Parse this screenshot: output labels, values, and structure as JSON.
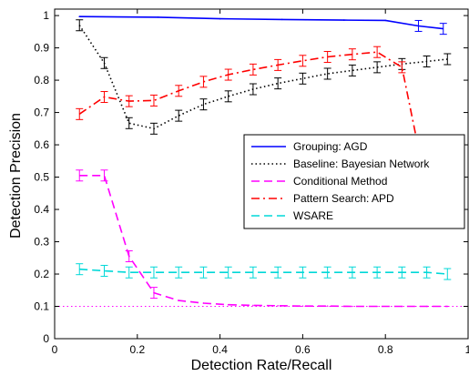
{
  "chart_data": {
    "type": "line",
    "title": "",
    "xlabel": "Detection Rate/Recall",
    "ylabel": "Detection Precision",
    "xlim": [
      0,
      1
    ],
    "ylim": [
      0,
      1.02
    ],
    "xticks": [
      "0",
      "0.2",
      "0.4",
      "0.6",
      "0.8",
      "1"
    ],
    "yticks": [
      "0",
      "0.1",
      "0.2",
      "0.3",
      "0.4",
      "0.5",
      "0.6",
      "0.7",
      "0.8",
      "0.9",
      "1"
    ],
    "grid": false,
    "legend_position": "right",
    "series": [
      {
        "name": "Grouping: AGD",
        "color": "#0000ff",
        "dash": "solid",
        "x": [
          0.06,
          0.25,
          0.4,
          0.55,
          0.7,
          0.8,
          0.88,
          0.94
        ],
        "y": [
          0.997,
          0.995,
          0.99,
          0.988,
          0.986,
          0.985,
          0.968,
          0.959
        ],
        "errorbars": [
          false,
          false,
          false,
          false,
          false,
          false,
          true,
          true
        ]
      },
      {
        "name": "Baseline: Bayesian Network",
        "color": "#000000",
        "dash": "dotted",
        "x": [
          0.06,
          0.12,
          0.18,
          0.24,
          0.3,
          0.36,
          0.42,
          0.48,
          0.54,
          0.6,
          0.66,
          0.72,
          0.78,
          0.84,
          0.9,
          0.95
        ],
        "y": [
          0.97,
          0.853,
          0.667,
          0.65,
          0.69,
          0.725,
          0.75,
          0.772,
          0.79,
          0.805,
          0.82,
          0.83,
          0.84,
          0.85,
          0.858,
          0.865
        ],
        "errorbars": [
          true,
          true,
          true,
          true,
          true,
          true,
          true,
          true,
          true,
          true,
          true,
          true,
          true,
          true,
          true,
          true
        ]
      },
      {
        "name": "Conditional Method",
        "color": "#ff00ff",
        "dash": "dashed",
        "x": [
          0.06,
          0.12,
          0.18,
          0.24,
          0.3,
          0.36,
          0.42,
          0.48,
          0.54,
          0.6,
          0.66,
          0.72,
          0.78,
          0.84,
          0.9,
          0.95
        ],
        "y": [
          0.505,
          0.505,
          0.255,
          0.142,
          0.118,
          0.11,
          0.105,
          0.103,
          0.102,
          0.101,
          0.101,
          0.1,
          0.1,
          0.1,
          0.1,
          0.1
        ],
        "errorbars": [
          true,
          true,
          true,
          true,
          false,
          false,
          false,
          false,
          false,
          false,
          false,
          false,
          false,
          false,
          false,
          false
        ]
      },
      {
        "name": "Pattern Search: APD",
        "color": "#ff0000",
        "dash": "dashdot",
        "x": [
          0.06,
          0.12,
          0.18,
          0.24,
          0.3,
          0.36,
          0.42,
          0.48,
          0.54,
          0.6,
          0.66,
          0.72,
          0.78,
          0.84
        ],
        "y": [
          0.695,
          0.748,
          0.735,
          0.737,
          0.767,
          0.795,
          0.817,
          0.833,
          0.847,
          0.86,
          0.872,
          0.88,
          0.887,
          0.84
        ],
        "errorbars": [
          true,
          true,
          true,
          true,
          true,
          true,
          true,
          true,
          true,
          true,
          true,
          true,
          true,
          true
        ],
        "tail_to": [
          0.875,
          0.62
        ]
      },
      {
        "name": "WSARE",
        "color": "#00d8d8",
        "dash": "dashed",
        "x": [
          0.06,
          0.12,
          0.18,
          0.24,
          0.3,
          0.36,
          0.42,
          0.48,
          0.54,
          0.6,
          0.66,
          0.72,
          0.78,
          0.84,
          0.9,
          0.95
        ],
        "y": [
          0.215,
          0.21,
          0.205,
          0.205,
          0.205,
          0.205,
          0.205,
          0.205,
          0.205,
          0.205,
          0.205,
          0.205,
          0.205,
          0.205,
          0.205,
          0.2
        ],
        "errorbars": [
          true,
          true,
          true,
          true,
          true,
          true,
          true,
          true,
          true,
          true,
          true,
          true,
          true,
          true,
          true,
          true
        ]
      }
    ],
    "reference_line": {
      "y": 0.1,
      "color": "#ff00ff",
      "style": "dotted"
    }
  }
}
